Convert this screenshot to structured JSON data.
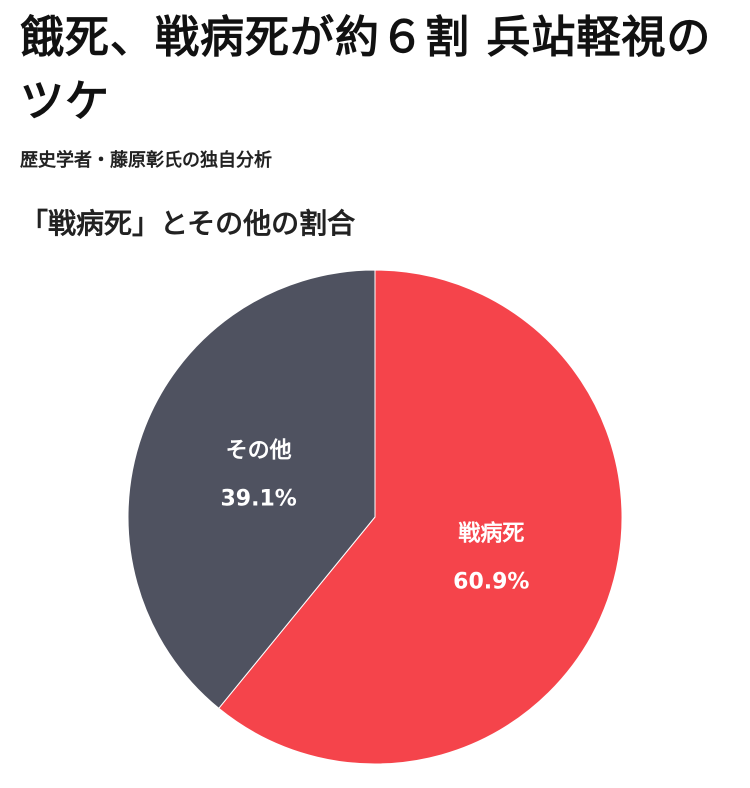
{
  "chart_data": {
    "type": "pie",
    "title": "餓死、戦病死が約６割 兵站軽視のツケ",
    "subtitle": "歴史学者・藤原彰氏の独自分析",
    "chart_title": "「戦病死」とその他の割合",
    "categories": [
      "戦病死",
      "その他"
    ],
    "values": [
      60.9,
      39.1
    ],
    "value_labels": [
      "60.9%",
      "39.1%"
    ],
    "colors": [
      "#f5444b",
      "#4f5260"
    ]
  }
}
